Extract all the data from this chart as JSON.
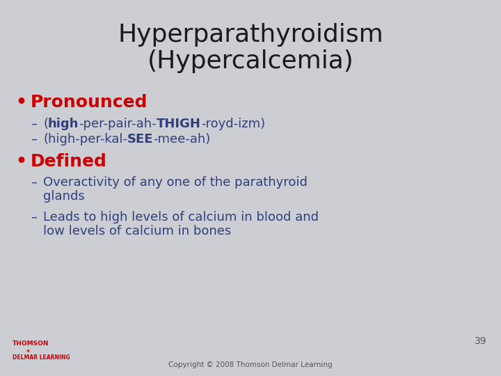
{
  "title_line1": "Hyperparathyroidism",
  "title_line2": "(Hypercalcemia)",
  "title_color": "#1a1a1a",
  "title_fontsize": 26,
  "bg_color": "#ccced4",
  "bullet_color": "#cc0000",
  "dash_color": "#2e3f7e",
  "bullet1_text": "Pronounced",
  "bullet_fontsize": 18,
  "dash_fontsize": 13,
  "bullet2_text": "Defined",
  "dash3_line1": "Overactivity of any one of the parathyroid",
  "dash3_line2": "glands",
  "dash4_line1": "Leads to high levels of calcium in blood and",
  "dash4_line2": "low levels of calcium in bones",
  "page_number": "39",
  "copyright": "Copyright © 2008 Thomson Delmar Learning",
  "footer_color": "#555555",
  "footer_fontsize": 7.5,
  "thomson_color": "#cc0000",
  "thomson_fontsize": 6.5
}
